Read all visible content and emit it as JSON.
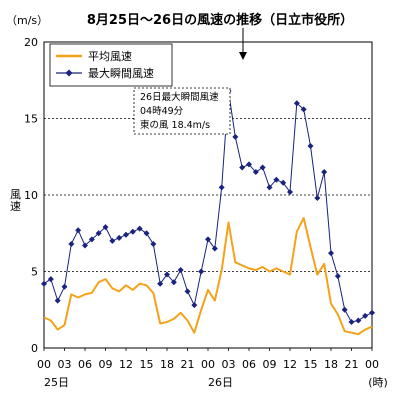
{
  "chart_data": {
    "type": "line",
    "title": "8月25日～26日の風速の推移（日立市役所）",
    "y_unit": "（m/s）",
    "ylabel": "風速",
    "x_unit": "(時)",
    "ylim": [
      0,
      20
    ],
    "y_ticks": [
      "0",
      "5",
      "10",
      "15",
      "20"
    ],
    "x_tick_labels": [
      "00",
      "03",
      "06",
      "09",
      "12",
      "15",
      "18",
      "21",
      "00",
      "03",
      "06",
      "09",
      "12",
      "15",
      "18",
      "21",
      "00"
    ],
    "date_labels": [
      {
        "label": "25日",
        "hour": 0
      },
      {
        "label": "26日",
        "hour": 24
      }
    ],
    "gridlines": [
      5,
      10,
      15
    ],
    "x": [
      0,
      1,
      2,
      3,
      4,
      5,
      6,
      7,
      8,
      9,
      10,
      11,
      12,
      13,
      14,
      15,
      16,
      17,
      18,
      19,
      20,
      21,
      22,
      23,
      24,
      25,
      26,
      27,
      28,
      29,
      30,
      31,
      32,
      33,
      34,
      35,
      36,
      37,
      38,
      39,
      40,
      41,
      42,
      43,
      44,
      45,
      46,
      47,
      48
    ],
    "series": [
      {
        "name": "平均風速",
        "color": "#f5a21b",
        "marker": "none",
        "values": [
          2.0,
          1.8,
          1.2,
          1.5,
          3.5,
          3.3,
          3.5,
          3.6,
          4.3,
          4.5,
          3.9,
          3.7,
          4.1,
          3.8,
          4.2,
          4.1,
          3.6,
          1.6,
          1.7,
          1.9,
          2.3,
          1.8,
          1.0,
          2.5,
          3.8,
          3.1,
          5.1,
          8.2,
          5.6,
          5.4,
          5.2,
          5.1,
          5.3,
          5.0,
          5.2,
          5.0,
          4.8,
          7.6,
          8.5,
          6.6,
          4.8,
          5.5,
          2.9,
          2.2,
          1.1,
          1.0,
          0.9,
          1.2,
          1.4
        ]
      },
      {
        "name": "最大瞬間風速",
        "color": "#1a237e",
        "marker": "diamond",
        "values": [
          4.2,
          4.5,
          3.1,
          4.0,
          6.8,
          7.7,
          6.7,
          7.1,
          7.5,
          7.9,
          7.0,
          7.2,
          7.4,
          7.6,
          7.8,
          7.5,
          6.8,
          4.2,
          4.8,
          4.3,
          5.1,
          3.7,
          2.8,
          5.0,
          7.1,
          6.5,
          10.5,
          16.8,
          13.8,
          11.8,
          12.0,
          11.5,
          11.8,
          10.5,
          11.0,
          10.8,
          10.2,
          16.0,
          15.6,
          13.2,
          9.8,
          11.5,
          6.2,
          4.7,
          2.5,
          1.7,
          1.8,
          2.1,
          2.3
        ]
      }
    ],
    "annotation": {
      "lines": [
        "26日最大瞬間風速",
        "04時49分",
        "東の風 18.4m/s"
      ]
    }
  }
}
